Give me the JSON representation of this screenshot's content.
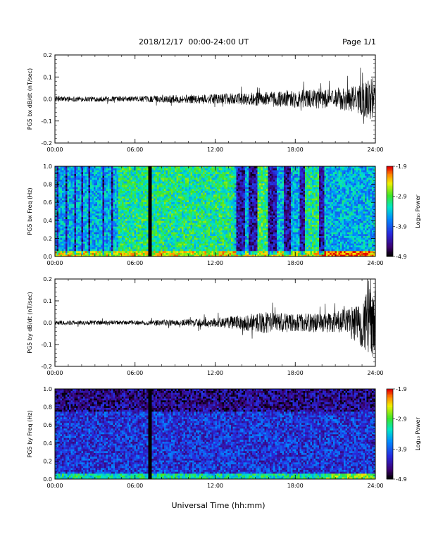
{
  "header": {
    "title": "2018/12/17  00:00-24:00 UT",
    "page": "Page 1/1"
  },
  "x_title": "Universal Time (hh:mm)",
  "chart_data": [
    {
      "type": "line",
      "ylabel": "PG5 bx dB/dt (nT/sec)",
      "xlim": [
        0,
        24
      ],
      "ylim": [
        -0.2,
        0.2
      ],
      "x_ticks": [
        "00:00",
        "06:00",
        "12:00",
        "18:00",
        "24:00"
      ],
      "y_ticks": [
        "-0.2",
        "-0.1",
        "0.0",
        "0.1",
        "0.2"
      ],
      "envelope_points": [
        [
          0,
          0.012
        ],
        [
          6,
          0.012
        ],
        [
          9,
          0.018
        ],
        [
          12,
          0.022
        ],
        [
          15,
          0.03
        ],
        [
          18,
          0.04
        ],
        [
          21,
          0.045
        ],
        [
          22.5,
          0.06
        ],
        [
          23.5,
          0.09
        ],
        [
          24,
          0.1
        ]
      ],
      "color": "#000000"
    },
    {
      "type": "heatmap",
      "ylabel": "PG5 bx Freq (Hz)",
      "xlim": [
        0,
        24
      ],
      "ylim": [
        0,
        1.0
      ],
      "x_ticks": [
        "00:00",
        "06:00",
        "12:00",
        "18:00",
        "24:00"
      ],
      "y_ticks": [
        "0.0",
        "0.2",
        "0.4",
        "0.6",
        "0.8",
        "1.0"
      ],
      "colorbar": {
        "label": "Log₁₀ Power",
        "ticks": [
          "-1.9",
          "-2.9",
          "-3.9",
          "-4.9"
        ],
        "range": [
          -4.9,
          -1.9
        ]
      },
      "gap_hours": [
        7.0,
        7.2
      ],
      "dark_stripe_hours": [
        [
          0.1,
          0.3
        ],
        [
          0.8,
          0.95
        ],
        [
          1.4,
          1.55
        ],
        [
          2.0,
          2.1
        ],
        [
          2.5,
          2.65
        ],
        [
          3.1,
          3.2
        ],
        [
          3.6,
          3.7
        ],
        [
          4.2,
          4.3
        ],
        [
          4.7,
          4.8
        ],
        [
          13.6,
          14.2
        ],
        [
          14.5,
          15.1
        ],
        [
          16.0,
          16.6
        ],
        [
          17.2,
          17.7
        ],
        [
          18.3,
          18.7
        ],
        [
          19.8,
          20.2
        ]
      ],
      "base_level": -3.5,
      "low_freq_level": -2.5
    },
    {
      "type": "line",
      "ylabel": "PG5 by dB/dt (nT/sec)",
      "xlim": [
        0,
        24
      ],
      "ylim": [
        -0.2,
        0.2
      ],
      "x_ticks": [
        "00:00",
        "06:00",
        "12:00",
        "18:00",
        "24:00"
      ],
      "y_ticks": [
        "-0.2",
        "-0.1",
        "0.0",
        "0.1",
        "0.2"
      ],
      "envelope_points": [
        [
          0,
          0.01
        ],
        [
          6,
          0.01
        ],
        [
          9,
          0.015
        ],
        [
          12,
          0.02
        ],
        [
          14,
          0.035
        ],
        [
          16,
          0.05
        ],
        [
          18,
          0.04
        ],
        [
          21,
          0.05
        ],
        [
          22.5,
          0.08
        ],
        [
          23.5,
          0.15
        ],
        [
          24,
          0.18
        ]
      ],
      "color": "#000000"
    },
    {
      "type": "heatmap",
      "ylabel": "PG5 by Freq (Hz)",
      "xlim": [
        0,
        24
      ],
      "ylim": [
        0,
        1.0
      ],
      "x_ticks": [
        "00:00",
        "06:00",
        "12:00",
        "18:00",
        "24:00"
      ],
      "y_ticks": [
        "0.0",
        "0.2",
        "0.4",
        "0.6",
        "0.8",
        "1.0"
      ],
      "colorbar": {
        "label": "Log₁₀ Power",
        "ticks": [
          "-1.9",
          "-2.9",
          "-3.9",
          "-4.9"
        ],
        "range": [
          -4.9,
          -1.9
        ]
      },
      "gap_hours": [
        7.0,
        7.2
      ],
      "dark_stripe_hours": [],
      "base_level": -4.1,
      "low_freq_level": -3.2
    }
  ]
}
